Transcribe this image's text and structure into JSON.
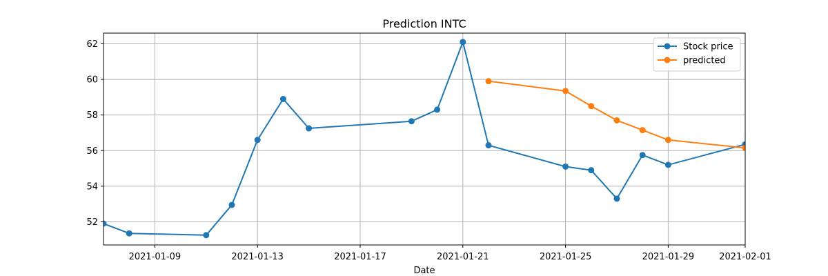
{
  "chart_data": {
    "type": "line",
    "title": "Prediction INTC",
    "xlabel": "Date",
    "ylabel": "",
    "xlim": [
      "2021-01-07",
      "2021-02-01"
    ],
    "ylim": [
      50.7,
      62.6
    ],
    "x_ticks": [
      "2021-01-09",
      "2021-01-13",
      "2021-01-17",
      "2021-01-21",
      "2021-01-25",
      "2021-01-29",
      "2021-02-01"
    ],
    "y_ticks": [
      52,
      54,
      56,
      58,
      60,
      62
    ],
    "grid": true,
    "legend_position": "top-right",
    "series": [
      {
        "name": "Stock price",
        "color": "#1f77b4",
        "marker": "circle",
        "x": [
          "2021-01-07",
          "2021-01-08",
          "2021-01-11",
          "2021-01-12",
          "2021-01-13",
          "2021-01-14",
          "2021-01-15",
          "2021-01-19",
          "2021-01-20",
          "2021-01-21",
          "2021-01-22",
          "2021-01-25",
          "2021-01-26",
          "2021-01-27",
          "2021-01-28",
          "2021-01-29",
          "2021-02-01"
        ],
        "values": [
          51.9,
          51.35,
          51.25,
          52.95,
          56.6,
          58.9,
          57.25,
          57.65,
          58.3,
          62.1,
          56.3,
          55.1,
          54.9,
          53.3,
          55.75,
          55.2,
          56.35
        ]
      },
      {
        "name": "predicted",
        "color": "#ff7f0e",
        "marker": "circle",
        "x": [
          "2021-01-22",
          "2021-01-25",
          "2021-01-26",
          "2021-01-27",
          "2021-01-28",
          "2021-01-29",
          "2021-02-01"
        ],
        "values": [
          59.9,
          59.35,
          58.5,
          57.7,
          57.15,
          56.6,
          56.15
        ]
      }
    ]
  }
}
